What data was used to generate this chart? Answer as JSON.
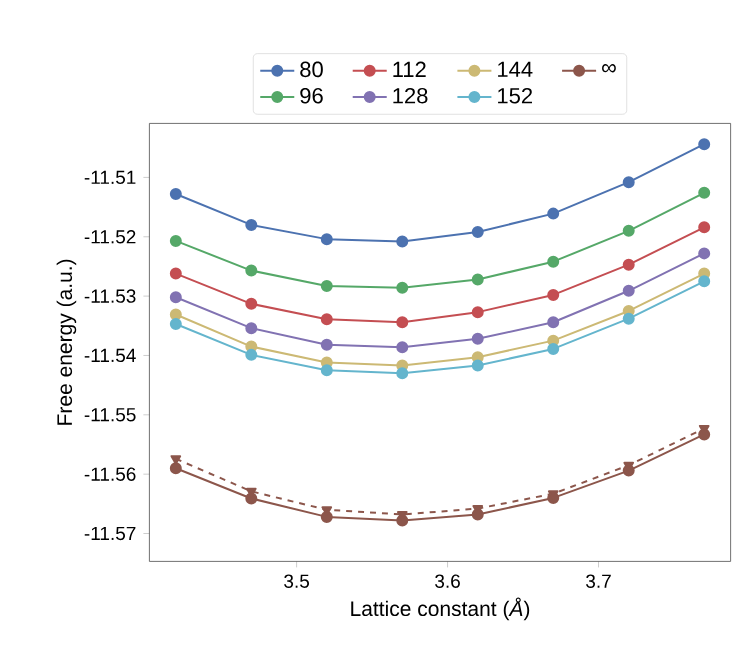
{
  "chart_data": {
    "type": "line",
    "xlabel": "Lattice constant (*Å*)",
    "ylabel": "Free energy (a.u.)",
    "x": [
      3.42,
      3.47,
      3.52,
      3.57,
      3.62,
      3.67,
      3.72,
      3.77
    ],
    "series": [
      {
        "name": "80",
        "color": "#4c72b0",
        "values": [
          -11.5128,
          -11.518,
          -11.5204,
          -11.5208,
          -11.5192,
          -11.5161,
          -11.5108,
          -11.5044
        ]
      },
      {
        "name": "96",
        "color": "#55a868",
        "values": [
          -11.5207,
          -11.5257,
          -11.5283,
          -11.5286,
          -11.5272,
          -11.5242,
          -11.519,
          -11.5126
        ]
      },
      {
        "name": "112",
        "color": "#c44e52",
        "values": [
          -11.5262,
          -11.5313,
          -11.5339,
          -11.5344,
          -11.5327,
          -11.5298,
          -11.5247,
          -11.5184
        ]
      },
      {
        "name": "128",
        "color": "#8172b2",
        "values": [
          -11.5302,
          -11.5354,
          -11.5382,
          -11.5386,
          -11.5372,
          -11.5344,
          -11.5291,
          -11.5228
        ]
      },
      {
        "name": "144",
        "color": "#ccb974",
        "values": [
          -11.5331,
          -11.5385,
          -11.5412,
          -11.5417,
          -11.5403,
          -11.5375,
          -11.5325,
          -11.5262
        ]
      },
      {
        "name": "152",
        "color": "#64b5cd",
        "values": [
          -11.5347,
          -11.5399,
          -11.5425,
          -11.543,
          -11.5417,
          -11.5389,
          -11.5338,
          -11.5275
        ]
      },
      {
        "name": "∞",
        "color": "#8c564b",
        "values": [
          -11.559,
          -11.5641,
          -11.5672,
          -11.5678,
          -11.5668,
          -11.564,
          -11.5594,
          -11.5533
        ]
      },
      {
        "color": "#8c564b",
        "marker": "triangle",
        "line_style": "dashed",
        "values": [
          -11.5574,
          -11.5629,
          -11.566,
          -11.5668,
          -11.5658,
          -11.5633,
          -11.5585,
          -11.5523
        ]
      }
    ],
    "xlim": [
      3.4025,
      3.7875
    ],
    "ylim": [
      -11.5747,
      -11.5009
    ],
    "xticks": [
      3.5,
      3.6,
      3.7
    ],
    "yticks": [
      -11.57,
      -11.56,
      -11.55,
      -11.54,
      -11.53,
      -11.52,
      -11.51
    ],
    "marker": "circle",
    "line_style": "solid",
    "grid": false,
    "legend": "top"
  }
}
